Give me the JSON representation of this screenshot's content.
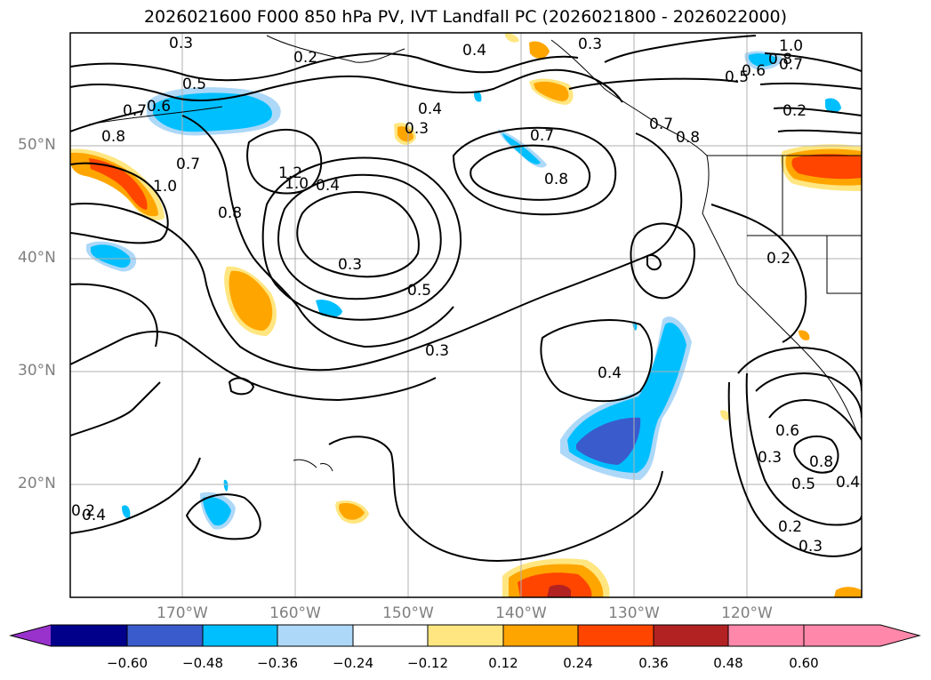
{
  "title": "2026021600 F000 850 hPa PV, IVT Landfall PC (2026021800 - 2026022000)",
  "lat_labels": [
    "50°N",
    "40°N",
    "30°N",
    "20°N"
  ],
  "lon_labels": [
    "170°W",
    "160°W",
    "150°W",
    "140°W",
    "130°W",
    "120°W"
  ],
  "colorbar": {
    "ticks": [
      "−0.60",
      "−0.48",
      "−0.36",
      "−0.24",
      "−0.12",
      "0.12",
      "0.24",
      "0.36",
      "0.48",
      "0.60"
    ],
    "colors": [
      "#9932cc",
      "#00008b",
      "#3a5bcc",
      "#00bfff",
      "#add8f8",
      "#ffffff",
      "#ffe680",
      "#ffa500",
      "#ff4500",
      "#b22222",
      "#ff88aa"
    ]
  },
  "contour_labels": [
    "0.3",
    "0.2",
    "0.4",
    "0.3",
    "1.0",
    "0.8",
    "0.7",
    "0.6",
    "0.5",
    "0.7",
    "0.6",
    "0.5",
    "0.8",
    "0.4",
    "0.2",
    "0.7",
    "0.7",
    "1.0",
    "1.2",
    "1.0",
    "0.4",
    "0.8",
    "0.8",
    "0.7",
    "0.8",
    "0.3",
    "0.5",
    "0.3",
    "0.4",
    "0.2",
    "0.2",
    "0.6",
    "0.3",
    "0.8",
    "0.5",
    "0.4",
    "0.3",
    "0.2",
    "0.3",
    "0.4"
  ]
}
